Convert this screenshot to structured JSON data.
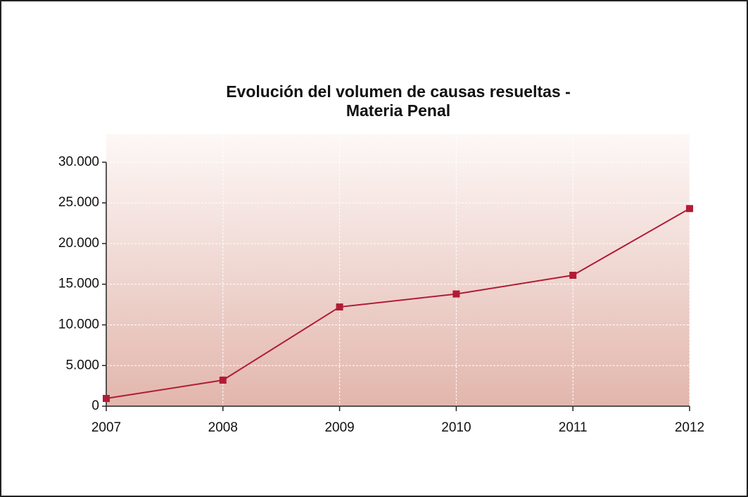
{
  "chart_data": {
    "type": "line",
    "title": [
      "Evolución del volumen de causas resueltas -",
      "Materia Penal"
    ],
    "x": [
      2007,
      2008,
      2009,
      2010,
      2011,
      2012
    ],
    "series": [
      {
        "name": "Causas resueltas",
        "color": "#b01c36",
        "values": [
          950,
          3200,
          12200,
          13800,
          16100,
          24300
        ]
      }
    ],
    "xlim": [
      2007,
      2012
    ],
    "xticks": [
      2007,
      2008,
      2009,
      2010,
      2011,
      2012
    ],
    "ylim": [
      0,
      33500
    ],
    "yticks": [
      0,
      {
        "value": 5000,
        "label": "5.000"
      },
      {
        "value": 10000,
        "label": "10.000"
      },
      {
        "value": 15000,
        "label": "15.000"
      },
      {
        "value": 20000,
        "label": "20.000"
      },
      {
        "value": 25000,
        "label": "25.000"
      },
      {
        "value": 30000,
        "label": "30.000"
      }
    ],
    "grid": true
  }
}
